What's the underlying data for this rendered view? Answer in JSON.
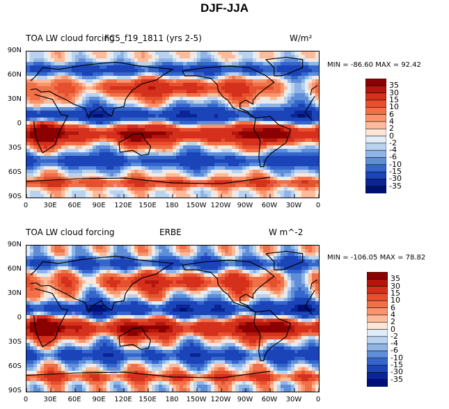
{
  "title": "DJF-JJA",
  "panels": [
    {
      "left_title": "TOA LW cloud forcing",
      "center_title": "FC5_f19_1811 (yrs 2-5)",
      "units": "W/m²",
      "minmax": "MIN = -86.60 MAX =  92.42",
      "field": "model"
    },
    {
      "left_title": "TOA LW cloud forcing",
      "center_title": "ERBE",
      "units": "W m^-2",
      "minmax": "MIN = -106.05 MAX =  78.82",
      "field": "obs"
    }
  ],
  "lat_ticks": [
    "90N",
    "60N",
    "30N",
    "0",
    "30S",
    "60S",
    "90S"
  ],
  "lon_ticks": [
    "0",
    "30E",
    "60E",
    "90E",
    "120E",
    "150E",
    "180",
    "150W",
    "120W",
    "90W",
    "60W",
    "30W",
    "0"
  ],
  "colorbar": {
    "levels": [
      "35",
      "30",
      "15",
      "10",
      "6",
      "4",
      "2",
      "0",
      "-2",
      "-4",
      "-6",
      "-10",
      "-15",
      "-30",
      "-35"
    ],
    "colors": [
      "#8b0000",
      "#b3160c",
      "#d4301c",
      "#e6502e",
      "#f07048",
      "#f8956e",
      "#fcbc9c",
      "#fde6d6",
      "#e0ecf8",
      "#b9d3ef",
      "#8fb5e6",
      "#5f8ed9",
      "#3566cc",
      "#1a44b8",
      "#0b2596",
      "#001070"
    ]
  }
}
